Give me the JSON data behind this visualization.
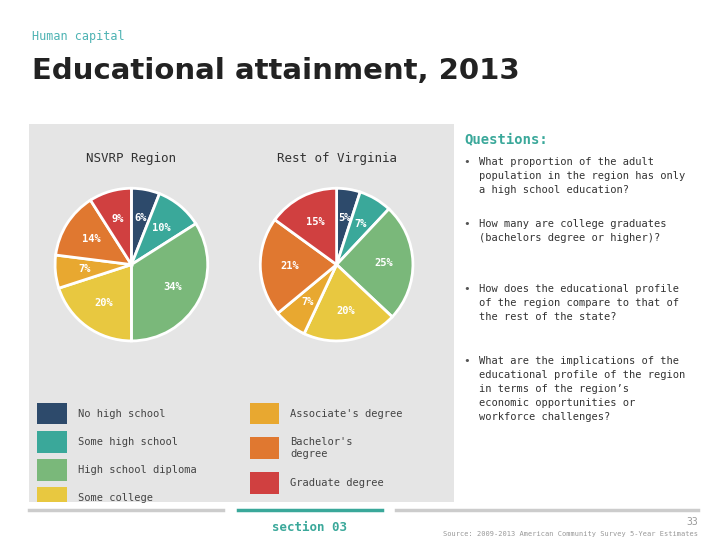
{
  "title": "Educational attainment, 2013",
  "subtitle": "Human capital",
  "subtitle_color": "#4db3b3",
  "title_color": "#222222",
  "nsvrp_values": [
    6,
    10,
    34,
    20,
    7,
    14,
    9
  ],
  "nsvrp_colors": [
    "#2d4a6b",
    "#3aa89a",
    "#7ab87a",
    "#e8c840",
    "#e8a830",
    "#e07830",
    "#d04040"
  ],
  "virginia_values": [
    5,
    7,
    25,
    20,
    7,
    21,
    15
  ],
  "virginia_colors": [
    "#2d4a6b",
    "#3aa89a",
    "#7ab87a",
    "#e8c840",
    "#e8a830",
    "#e07830",
    "#d04040"
  ],
  "legend_left": [
    {
      "label": "No high school",
      "color": "#2d4a6b"
    },
    {
      "label": "Some high school",
      "color": "#3aa89a"
    },
    {
      "label": "High school diploma",
      "color": "#7ab87a"
    },
    {
      "label": "Some college",
      "color": "#e8c840"
    }
  ],
  "legend_right": [
    {
      "label": "Associate's degree",
      "color": "#e8a830"
    },
    {
      "label": "Bachelor's\ndegree",
      "color": "#e07830"
    },
    {
      "label": "Graduate degree",
      "color": "#d04040"
    }
  ],
  "questions_title": "Questions:",
  "questions_color": "#3aa89a",
  "questions": [
    "What proportion of the adult\npopulation in the region has only\na high school education?",
    "How many are college graduates\n(bachelors degree or higher)?",
    "How does the educational profile\nof the region compare to that of\nthe rest of the state?",
    "What are the implications of the\neducational profile of the region\nin terms of the region’s\neconomic opportunities or\nworkforce challenges?"
  ],
  "footer_text": "section 03",
  "footer_color": "#3aa89a",
  "source_text": "Source: 2009-2013 American Community Survey 5-Year Estimates",
  "page_number": "33",
  "panel_color": "#e5e5e5",
  "nsvrp_title": "NSVRP Region",
  "virginia_title": "Rest of Virginia"
}
